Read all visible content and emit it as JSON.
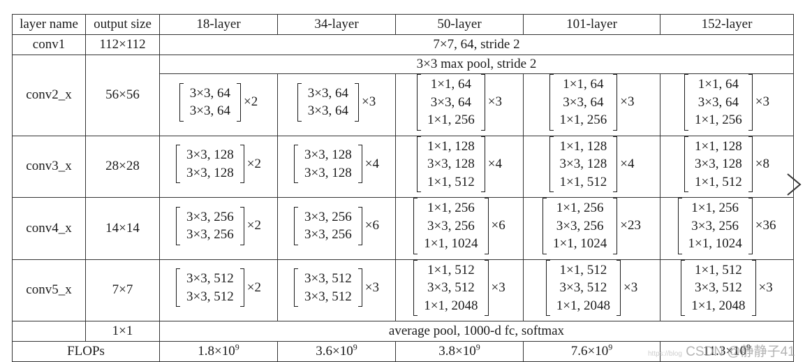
{
  "header": [
    "layer name",
    "output size",
    "18-layer",
    "34-layer",
    "50-layer",
    "101-layer",
    "152-layer"
  ],
  "conv1": {
    "name": "conv1",
    "size": "112×112",
    "spec": "7×7, 64, stride 2"
  },
  "conv2_pool": {
    "name": "conv2_x",
    "size": "56×56",
    "spec": "3×3 max pool, stride 2"
  },
  "rows": [
    {
      "name": "conv3_x",
      "cells": [
        {
          "lines": [
            "3×3, 128",
            "3×3, 128"
          ],
          "rep": "×2"
        },
        {
          "lines": [
            "3×3, 128",
            "3×3, 128"
          ],
          "rep": "×4"
        },
        {
          "lines": [
            "1×1, 128",
            "3×3, 128",
            "1×1, 512"
          ],
          "rep": "×4"
        },
        {
          "lines": [
            "1×1, 128",
            "3×3, 128",
            "1×1, 512"
          ],
          "rep": "×4"
        },
        {
          "lines": [
            "1×1, 128",
            "3×3, 128",
            "1×1, 512"
          ],
          "rep": "×8"
        }
      ],
      "size": "28×28"
    },
    {
      "name": "conv4_x",
      "cells": [
        {
          "lines": [
            "3×3, 256",
            "3×3, 256"
          ],
          "rep": "×2"
        },
        {
          "lines": [
            "3×3, 256",
            "3×3, 256"
          ],
          "rep": "×6"
        },
        {
          "lines": [
            "1×1, 256",
            "3×3, 256",
            "1×1, 1024"
          ],
          "rep": "×6"
        },
        {
          "lines": [
            "1×1, 256",
            "3×3, 256",
            "1×1, 1024"
          ],
          "rep": "×23"
        },
        {
          "lines": [
            "1×1, 256",
            "3×3, 256",
            "1×1, 1024"
          ],
          "rep": "×36"
        }
      ],
      "size": "14×14"
    },
    {
      "name": "conv5_x",
      "cells": [
        {
          "lines": [
            "3×3, 512",
            "3×3, 512"
          ],
          "rep": "×2"
        },
        {
          "lines": [
            "3×3, 512",
            "3×3, 512"
          ],
          "rep": "×3"
        },
        {
          "lines": [
            "1×1, 512",
            "3×3, 512",
            "1×1, 2048"
          ],
          "rep": "×3"
        },
        {
          "lines": [
            "1×1, 512",
            "3×3, 512",
            "1×1, 2048"
          ],
          "rep": "×3"
        },
        {
          "lines": [
            "1×1, 512",
            "3×3, 512",
            "1×1, 2048"
          ],
          "rep": "×3"
        }
      ],
      "size": "7×7"
    }
  ],
  "conv2_cells": [
    {
      "lines": [
        "3×3, 64",
        "3×3, 64"
      ],
      "rep": "×2"
    },
    {
      "lines": [
        "3×3, 64",
        "3×3, 64"
      ],
      "rep": "×3"
    },
    {
      "lines": [
        "1×1, 64",
        "3×3, 64",
        "1×1, 256"
      ],
      "rep": "×3"
    },
    {
      "lines": [
        "1×1, 64",
        "3×3, 64",
        "1×1, 256"
      ],
      "rep": "×3"
    },
    {
      "lines": [
        "1×1, 64",
        "3×3, 64",
        "1×1, 256"
      ],
      "rep": "×3"
    }
  ],
  "final": {
    "size": "1×1",
    "spec": "average pool, 1000-d fc, softmax"
  },
  "flops": {
    "label": "FLOPs",
    "values": [
      {
        "mant": "1.8×10",
        "exp": "9"
      },
      {
        "mant": "3.6×10",
        "exp": "9"
      },
      {
        "mant": "3.8×10",
        "exp": "9"
      },
      {
        "mant": "7.6×10",
        "exp": "9"
      },
      {
        "mant": "11.3×10",
        "exp": "9"
      }
    ]
  },
  "watermark": {
    "url": "https://blog",
    "text": "CSDN @静静子41"
  },
  "icons": {
    "next": "chevron-right-icon"
  }
}
